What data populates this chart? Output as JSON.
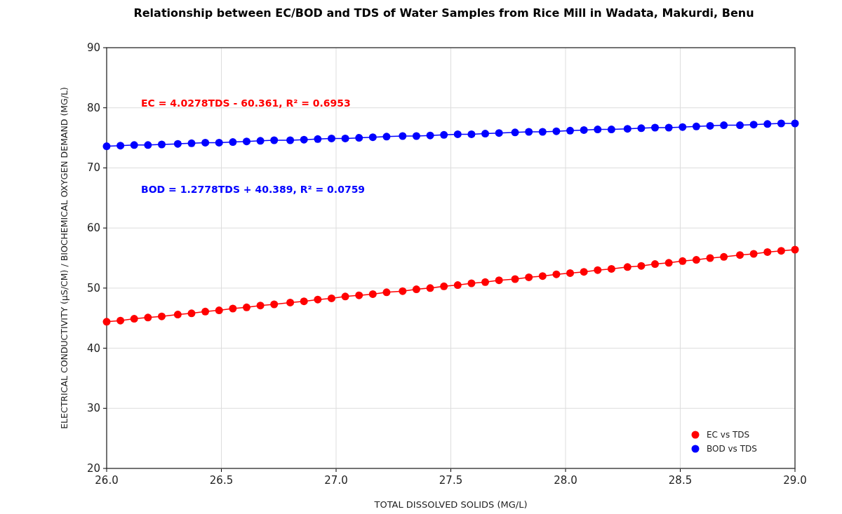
{
  "chart_data": {
    "type": "line",
    "title": "Relationship between EC/BOD and TDS of Water Samples from Rice Mill in Wadata, Makurdi, Benu",
    "xlabel": "TOTAL DISSOLVED SOLIDS (MG/L)",
    "ylabel": "ELECTRICAL CONDUCTIVITY (µS/CM) / BIOCHEMICAL OXYGEN DEMAND (MG/L)",
    "x": [
      26.0,
      26.06,
      26.12,
      26.18,
      26.24,
      26.31,
      26.37,
      26.43,
      26.49,
      26.55,
      26.61,
      26.67,
      26.73,
      26.8,
      26.86,
      26.92,
      26.98,
      27.04,
      27.1,
      27.16,
      27.22,
      27.29,
      27.35,
      27.41,
      27.47,
      27.53,
      27.59,
      27.65,
      27.71,
      27.78,
      27.84,
      27.9,
      27.96,
      28.02,
      28.08,
      28.14,
      28.2,
      28.27,
      28.33,
      28.39,
      28.45,
      28.51,
      28.57,
      28.63,
      28.69,
      28.76,
      28.82,
      28.88,
      28.94,
      29.0
    ],
    "series": [
      {
        "name": "EC vs TDS",
        "color": "#ff0000",
        "values": [
          44.4,
          44.6,
          44.9,
          45.1,
          45.3,
          45.6,
          45.8,
          46.1,
          46.3,
          46.6,
          46.8,
          47.1,
          47.3,
          47.6,
          47.8,
          48.1,
          48.3,
          48.6,
          48.8,
          49.0,
          49.3,
          49.5,
          49.8,
          50.0,
          50.3,
          50.5,
          50.8,
          51.0,
          51.3,
          51.5,
          51.8,
          52.0,
          52.3,
          52.5,
          52.7,
          53.0,
          53.2,
          53.5,
          53.7,
          54.0,
          54.2,
          54.5,
          54.7,
          55.0,
          55.2,
          55.5,
          55.7,
          56.0,
          56.2,
          56.4
        ]
      },
      {
        "name": "BOD vs TDS",
        "color": "#0000ff",
        "values": [
          73.6,
          73.7,
          73.8,
          73.8,
          73.9,
          74.0,
          74.1,
          74.2,
          74.2,
          74.3,
          74.4,
          74.5,
          74.6,
          74.6,
          74.7,
          74.8,
          74.9,
          74.9,
          75.0,
          75.1,
          75.2,
          75.3,
          75.3,
          75.4,
          75.5,
          75.6,
          75.6,
          75.7,
          75.8,
          75.9,
          76.0,
          76.0,
          76.1,
          76.2,
          76.3,
          76.4,
          76.4,
          76.5,
          76.6,
          76.7,
          76.7,
          76.8,
          76.9,
          77.0,
          77.1,
          77.1,
          77.2,
          77.3,
          77.4,
          77.4
        ]
      }
    ],
    "annotations": [
      "EC = 4.0278TDS - 60.361,  R² = 0.6953",
      "BOD = 1.2778TDS + 40.389,  R² = 0.0759"
    ],
    "xlim": [
      26,
      29
    ],
    "xticks": [
      {
        "value": 26,
        "label": "26.0"
      },
      {
        "value": 26.5,
        "label": "26.5"
      },
      {
        "value": 27,
        "label": "27.0"
      },
      {
        "value": 27.5,
        "label": "27.5"
      },
      {
        "value": 28,
        "label": "28.0"
      },
      {
        "value": 28.5,
        "label": "28.5"
      },
      {
        "value": 29,
        "label": "29.0"
      }
    ],
    "ylim": [
      20,
      90
    ],
    "yticks": [
      20,
      30,
      40,
      50,
      60,
      70,
      80,
      90
    ],
    "grid": true,
    "legend": "bottom right",
    "marker": "circle",
    "line_style": "solid"
  }
}
